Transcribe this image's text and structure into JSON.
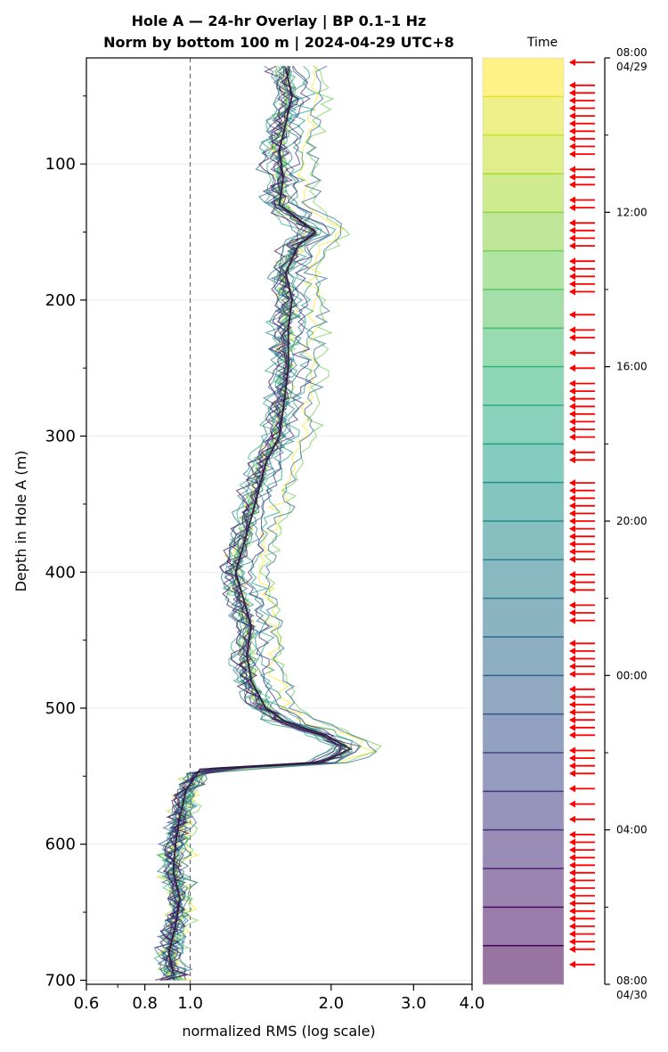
{
  "chart_data": {
    "type": "line",
    "title": "Hole A — 24-hr Overlay  |  BP 0.1–1 Hz",
    "subtitle": "Norm by bottom 100 m  |  2024-04-29 UTC+8",
    "xlabel": "normalized RMS  (log scale)",
    "ylabel": "Depth in Hole A (m)",
    "x_scale": "log",
    "xlim": [
      0.6,
      4.0
    ],
    "ylim": [
      703,
      22
    ],
    "y_inverted": true,
    "x_ticks": [
      {
        "v": 0.6,
        "label": "0.6"
      },
      {
        "v": 0.8,
        "label": "0.8"
      },
      {
        "v": 1.0,
        "label": "1.0"
      },
      {
        "v": 2.0,
        "label": "2.0"
      },
      {
        "v": 3.0,
        "label": "3.0"
      },
      {
        "v": 4.0,
        "label": "4.0"
      }
    ],
    "y_ticks": [
      {
        "v": 100,
        "label": "100"
      },
      {
        "v": 200,
        "label": "200"
      },
      {
        "v": 300,
        "label": "300"
      },
      {
        "v": 400,
        "label": "400"
      },
      {
        "v": 500,
        "label": "500"
      },
      {
        "v": 600,
        "label": "600"
      },
      {
        "v": 700,
        "label": "700"
      }
    ],
    "reference_line_x": 1.0,
    "grid": "horizontal",
    "mean_profile": {
      "depth": [
        30,
        50,
        70,
        90,
        110,
        130,
        150,
        160,
        180,
        200,
        220,
        250,
        280,
        300,
        320,
        340,
        360,
        380,
        400,
        420,
        440,
        460,
        480,
        500,
        510,
        520,
        530,
        540,
        545,
        560,
        580,
        600,
        620,
        640,
        660,
        680,
        695
      ],
      "rms": [
        1.6,
        1.65,
        1.6,
        1.55,
        1.58,
        1.55,
        1.85,
        1.7,
        1.6,
        1.65,
        1.62,
        1.62,
        1.58,
        1.55,
        1.45,
        1.4,
        1.35,
        1.3,
        1.25,
        1.3,
        1.35,
        1.32,
        1.35,
        1.45,
        1.6,
        1.95,
        2.2,
        1.9,
        1.05,
        0.98,
        0.95,
        0.93,
        0.92,
        0.95,
        0.93,
        0.9,
        0.92
      ]
    },
    "series_count": 24,
    "colorbar": {
      "title": "Time",
      "colormap": "viridis_r",
      "ticks": [
        {
          "hour": 0,
          "label": "08:00",
          "sublabel": "04/29"
        },
        {
          "hour": 4,
          "label": "12:00",
          "sublabel": ""
        },
        {
          "hour": 8,
          "label": "16:00",
          "sublabel": ""
        },
        {
          "hour": 12,
          "label": "20:00",
          "sublabel": ""
        },
        {
          "hour": 16,
          "label": "00:00",
          "sublabel": ""
        },
        {
          "hour": 20,
          "label": "04:00",
          "sublabel": ""
        },
        {
          "hour": 24,
          "label": "08:00",
          "sublabel": "04/30"
        }
      ],
      "arrow_color": "#ff0000",
      "arrow_count": 120
    }
  }
}
